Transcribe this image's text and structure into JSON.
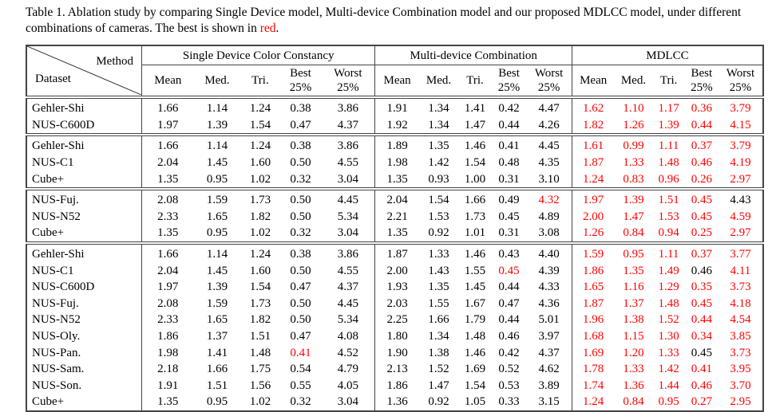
{
  "caption": {
    "text": "Table 1. Ablation study by comparing Single Device model, Multi-device Combination model and our proposed MDLCC model, under different combinations of cameras. The best is shown in ",
    "red_word": "red",
    "end": "."
  },
  "header": {
    "method": "Method",
    "dataset": "Dataset",
    "groups": [
      "Single Device Color Constancy",
      "Multi-device Combination",
      "MDLCC"
    ],
    "metrics": [
      "Mean",
      "Med.",
      "Tri.",
      "Best 25%",
      "Worst 25%"
    ]
  },
  "highlight_color": "#ff0000",
  "sections": [
    {
      "rows": [
        {
          "dataset": "Gehler-Shi",
          "values": [
            "1.66",
            "1.14",
            "1.24",
            "0.38",
            "3.86",
            "1.91",
            "1.34",
            "1.41",
            "0.42",
            "4.47",
            "1.62",
            "1.10",
            "1.17",
            "0.36",
            "3.79"
          ],
          "best": [
            10,
            11,
            12,
            13,
            14
          ]
        },
        {
          "dataset": "NUS-C600D",
          "values": [
            "1.97",
            "1.39",
            "1.54",
            "0.47",
            "4.37",
            "1.92",
            "1.34",
            "1.47",
            "0.44",
            "4.26",
            "1.82",
            "1.26",
            "1.39",
            "0.44",
            "4.15"
          ],
          "best": [
            10,
            11,
            12,
            13,
            14
          ]
        }
      ]
    },
    {
      "rows": [
        {
          "dataset": "Gehler-Shi",
          "values": [
            "1.66",
            "1.14",
            "1.24",
            "0.38",
            "3.86",
            "1.89",
            "1.35",
            "1.46",
            "0.41",
            "4.45",
            "1.61",
            "0.99",
            "1.11",
            "0.37",
            "3.79"
          ],
          "best": [
            10,
            11,
            12,
            13,
            14
          ]
        },
        {
          "dataset": "NUS-C1",
          "values": [
            "2.04",
            "1.45",
            "1.60",
            "0.50",
            "4.55",
            "1.98",
            "1.42",
            "1.54",
            "0.48",
            "4.35",
            "1.87",
            "1.33",
            "1.48",
            "0.46",
            "4.19"
          ],
          "best": [
            10,
            11,
            12,
            13,
            14
          ]
        },
        {
          "dataset": "Cube+",
          "values": [
            "1.35",
            "0.95",
            "1.02",
            "0.32",
            "3.04",
            "1.35",
            "0.93",
            "1.00",
            "0.31",
            "3.10",
            "1.24",
            "0.83",
            "0.96",
            "0.26",
            "2.97"
          ],
          "best": [
            10,
            11,
            12,
            13,
            14
          ]
        }
      ]
    },
    {
      "rows": [
        {
          "dataset": "NUS-Fuj.",
          "values": [
            "2.08",
            "1.59",
            "1.73",
            "0.50",
            "4.45",
            "2.04",
            "1.54",
            "1.66",
            "0.49",
            "4.32",
            "1.97",
            "1.39",
            "1.51",
            "0.45",
            "4.43"
          ],
          "best": [
            9,
            10,
            11,
            12,
            13
          ]
        },
        {
          "dataset": "NUS-N52",
          "values": [
            "2.33",
            "1.65",
            "1.82",
            "0.50",
            "5.34",
            "2.21",
            "1.53",
            "1.73",
            "0.45",
            "4.89",
            "2.00",
            "1.47",
            "1.53",
            "0.45",
            "4.59"
          ],
          "best": [
            10,
            11,
            12,
            13,
            14
          ]
        },
        {
          "dataset": "Cube+",
          "values": [
            "1.35",
            "0.95",
            "1.02",
            "0.32",
            "3.04",
            "1.35",
            "0.92",
            "1.01",
            "0.31",
            "3.08",
            "1.26",
            "0.84",
            "0.94",
            "0.25",
            "2.97"
          ],
          "best": [
            10,
            11,
            12,
            13,
            14
          ]
        }
      ]
    },
    {
      "rows": [
        {
          "dataset": "Gehler-Shi",
          "values": [
            "1.66",
            "1.14",
            "1.24",
            "0.38",
            "3.86",
            "1.87",
            "1.33",
            "1.46",
            "0.43",
            "4.40",
            "1.59",
            "0.95",
            "1.11",
            "0.37",
            "3.77"
          ],
          "best": [
            10,
            11,
            12,
            13,
            14
          ]
        },
        {
          "dataset": "NUS-C1",
          "values": [
            "2.04",
            "1.45",
            "1.60",
            "0.50",
            "4.55",
            "2.00",
            "1.43",
            "1.55",
            "0.45",
            "4.39",
            "1.86",
            "1.35",
            "1.49",
            "0.46",
            "4.11"
          ],
          "best": [
            8,
            10,
            11,
            12,
            14
          ]
        },
        {
          "dataset": "NUS-C600D",
          "values": [
            "1.97",
            "1.39",
            "1.54",
            "0.47",
            "4.37",
            "1.93",
            "1.35",
            "1.45",
            "0.44",
            "4.33",
            "1.65",
            "1.16",
            "1.29",
            "0.35",
            "3.73"
          ],
          "best": [
            10,
            11,
            12,
            13,
            14
          ]
        },
        {
          "dataset": "NUS-Fuj.",
          "values": [
            "2.08",
            "1.59",
            "1.73",
            "0.50",
            "4.45",
            "2.03",
            "1.55",
            "1.67",
            "0.47",
            "4.36",
            "1.87",
            "1.37",
            "1.48",
            "0.45",
            "4.18"
          ],
          "best": [
            10,
            11,
            12,
            13,
            14
          ]
        },
        {
          "dataset": "NUS-N52",
          "values": [
            "2.33",
            "1.65",
            "1.82",
            "0.50",
            "5.34",
            "2.25",
            "1.66",
            "1.79",
            "0.44",
            "5.01",
            "1.96",
            "1.38",
            "1.52",
            "0.44",
            "4.54"
          ],
          "best": [
            10,
            11,
            12,
            13,
            14
          ]
        },
        {
          "dataset": "NUS-Oly.",
          "values": [
            "1.86",
            "1.37",
            "1.51",
            "0.47",
            "4.08",
            "1.80",
            "1.34",
            "1.48",
            "0.46",
            "3.97",
            "1.68",
            "1.15",
            "1.30",
            "0.34",
            "3.85"
          ],
          "best": [
            10,
            11,
            12,
            13,
            14
          ]
        },
        {
          "dataset": "NUS-Pan.",
          "values": [
            "1.98",
            "1.41",
            "1.48",
            "0.41",
            "4.52",
            "1.90",
            "1.38",
            "1.46",
            "0.42",
            "4.37",
            "1.69",
            "1.20",
            "1.33",
            "0.45",
            "3.73"
          ],
          "best": [
            3,
            10,
            11,
            12,
            14
          ]
        },
        {
          "dataset": "NUS-Sam.",
          "values": [
            "2.18",
            "1.66",
            "1.75",
            "0.54",
            "4.79",
            "2.13",
            "1.52",
            "1.69",
            "0.52",
            "4.62",
            "1.78",
            "1.33",
            "1.42",
            "0.41",
            "3.95"
          ],
          "best": [
            10,
            11,
            12,
            13,
            14
          ]
        },
        {
          "dataset": "NUS-Son.",
          "values": [
            "1.91",
            "1.51",
            "1.56",
            "0.55",
            "4.05",
            "1.86",
            "1.47",
            "1.54",
            "0.53",
            "3.89",
            "1.74",
            "1.36",
            "1.44",
            "0.46",
            "3.70"
          ],
          "best": [
            10,
            11,
            12,
            13,
            14
          ]
        },
        {
          "dataset": "Cube+",
          "values": [
            "1.35",
            "0.95",
            "1.02",
            "0.32",
            "3.04",
            "1.36",
            "0.92",
            "1.05",
            "0.33",
            "3.15",
            "1.24",
            "0.84",
            "0.95",
            "0.27",
            "2.95"
          ],
          "best": [
            10,
            11,
            12,
            13,
            14
          ]
        }
      ]
    }
  ]
}
